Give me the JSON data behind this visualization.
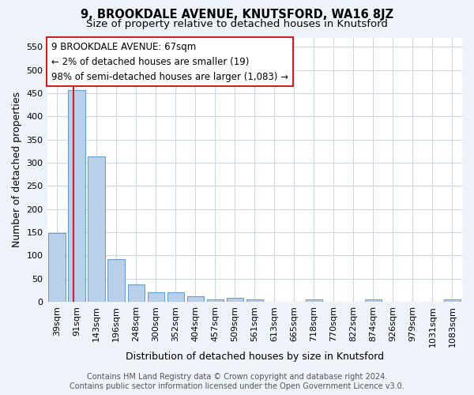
{
  "title": "9, BROOKDALE AVENUE, KNUTSFORD, WA16 8JZ",
  "subtitle": "Size of property relative to detached houses in Knutsford",
  "xlabel": "Distribution of detached houses by size in Knutsford",
  "ylabel": "Number of detached properties",
  "bar_labels": [
    "39sqm",
    "91sqm",
    "143sqm",
    "196sqm",
    "248sqm",
    "300sqm",
    "352sqm",
    "404sqm",
    "457sqm",
    "509sqm",
    "561sqm",
    "613sqm",
    "665sqm",
    "718sqm",
    "770sqm",
    "822sqm",
    "874sqm",
    "926sqm",
    "979sqm",
    "1031sqm",
    "1083sqm"
  ],
  "bar_values": [
    148,
    456,
    314,
    92,
    38,
    20,
    21,
    13,
    5,
    9,
    6,
    0,
    0,
    5,
    0,
    0,
    5,
    0,
    0,
    0,
    5
  ],
  "bar_color": "#b8d0ea",
  "bar_edge_color": "#6b9fc8",
  "vline_color": "#cc2222",
  "ylim": [
    0,
    570
  ],
  "yticks": [
    0,
    50,
    100,
    150,
    200,
    250,
    300,
    350,
    400,
    450,
    500,
    550
  ],
  "annotation_text": "9 BROOKDALE AVENUE: 67sqm\n← 2% of detached houses are smaller (19)\n98% of semi-detached houses are larger (1,083) →",
  "footer_text": "Contains HM Land Registry data © Crown copyright and database right 2024.\nContains public sector information licensed under the Open Government Licence v3.0.",
  "bg_color": "#eef2f9",
  "plot_bg_color": "#ffffff",
  "grid_color": "#c8d4e8",
  "title_fontsize": 10.5,
  "subtitle_fontsize": 9.5,
  "label_fontsize": 9,
  "tick_fontsize": 8,
  "annot_fontsize": 8.5,
  "footer_fontsize": 7
}
